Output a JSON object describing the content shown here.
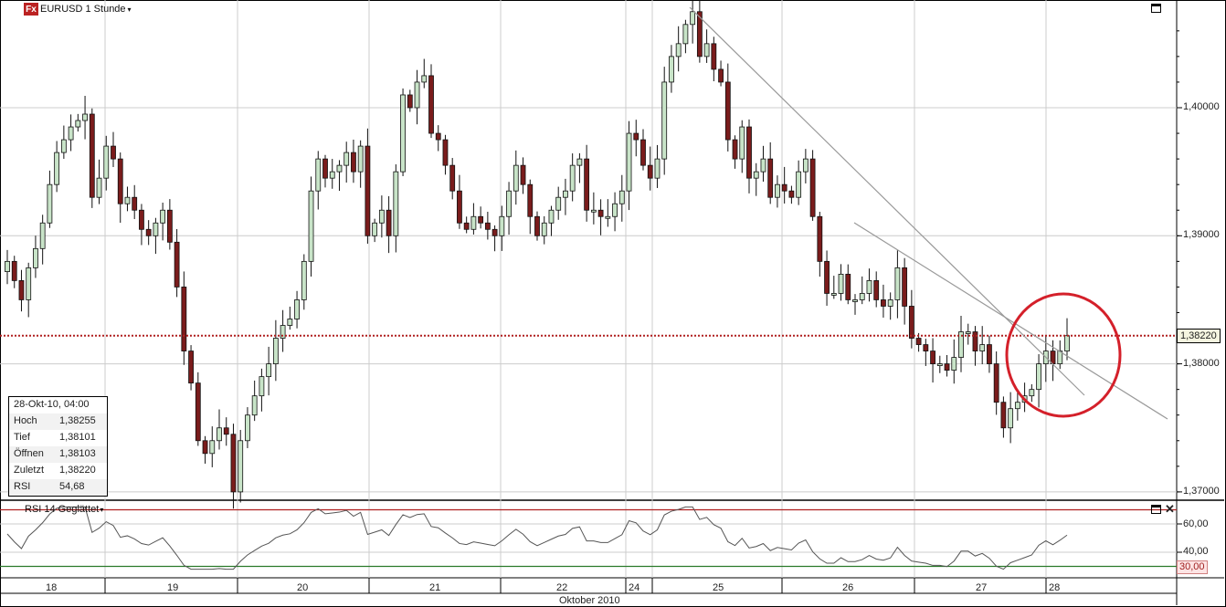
{
  "header": {
    "icon_label": "Fx",
    "title": "EURUSD 1 Stunde",
    "dropdown_caret": "▾"
  },
  "info_panel": {
    "datetime": "28-Okt-10, 04:00",
    "rows": [
      {
        "label": "Hoch",
        "value": "1,38255"
      },
      {
        "label": "Tief",
        "value": "1,38101"
      },
      {
        "label": "Öffnen",
        "value": "1,38103"
      },
      {
        "label": "Zuletzt",
        "value": "1,38220"
      },
      {
        "label": "RSI",
        "value": "54,68"
      }
    ]
  },
  "price_axis": {
    "labels": [
      "1,40000",
      "1,39000",
      "1,38000",
      "1,37000"
    ],
    "current_price": "1,38220"
  },
  "rsi_panel": {
    "title": "RSI 14 Geglättet",
    "labels": [
      "60,00",
      "40,00"
    ],
    "lower_level": "30,00",
    "close_icon": "✕"
  },
  "x_axis": {
    "days": [
      "18",
      "19",
      "20",
      "21",
      "22",
      "24",
      "25",
      "26",
      "27",
      "28"
    ],
    "month": "Oktober 2010"
  },
  "colors": {
    "bull": "#c8e4c8",
    "bear": "#7a1c1c",
    "current_line": "#b02020",
    "rsi_upper": "#b02020",
    "rsi_lower": "#2a7a2a",
    "circle": "#d4202a",
    "trendline": "#999999"
  },
  "chart_data": [
    {
      "type": "candlestick",
      "title": "EURUSD 1 Stunde",
      "xlabel": "Oktober 2010",
      "ylabel": "",
      "ylim": [
        1.3695,
        1.408
      ],
      "y_ticks": [
        1.37,
        1.38,
        1.39,
        1.4
      ],
      "x_ticks": [
        "18",
        "19",
        "20",
        "21",
        "22",
        "24",
        "25",
        "26",
        "27",
        "28"
      ],
      "grid": true,
      "current_price": 1.3822,
      "last_candle": {
        "time": "28-Okt-10, 04:00",
        "open": 1.38103,
        "high": 1.38255,
        "low": 1.38101,
        "close": 1.3822
      },
      "approx_series_close": [
        1.388,
        1.3865,
        1.385,
        1.3875,
        1.389,
        1.391,
        1.394,
        1.3965,
        1.3975,
        1.3985,
        1.399,
        1.3995,
        1.393,
        1.3945,
        1.397,
        1.396,
        1.3925,
        1.393,
        1.392,
        1.3905,
        1.39,
        1.391,
        1.392,
        1.3895,
        1.386,
        1.381,
        1.3785,
        1.374,
        1.373,
        1.374,
        1.375,
        1.3745,
        1.37,
        1.374,
        1.376,
        1.3775,
        1.379,
        1.38,
        1.382,
        1.383,
        1.3835,
        1.385,
        1.388,
        1.3935,
        1.396,
        1.3945,
        1.395,
        1.3955,
        1.3965,
        1.395,
        1.397,
        1.39,
        1.391,
        1.392,
        1.39,
        1.395,
        1.401,
        1.4,
        1.402,
        1.4025,
        1.398,
        1.3975,
        1.3955,
        1.3935,
        1.391,
        1.3905,
        1.3915,
        1.391,
        1.3905,
        1.39,
        1.3915,
        1.3935,
        1.3955,
        1.394,
        1.3915,
        1.39,
        1.391,
        1.392,
        1.393,
        1.3935,
        1.3955,
        1.396,
        1.392,
        1.392,
        1.3915,
        1.3915,
        1.3925,
        1.3935,
        1.398,
        1.3975,
        1.3955,
        1.3945,
        1.396,
        1.402,
        1.404,
        1.405,
        1.4065,
        1.4075,
        1.404,
        1.405,
        1.403,
        1.402,
        1.3975,
        1.396,
        1.3985,
        1.3945,
        1.395,
        1.396,
        1.393,
        1.394,
        1.3935,
        1.393,
        1.395,
        1.396,
        1.3915,
        1.388,
        1.3855,
        1.3855,
        1.387,
        1.385,
        1.385,
        1.3855,
        1.3865,
        1.385,
        1.3845,
        1.385,
        1.3875,
        1.3845,
        1.382,
        1.3815,
        1.381,
        1.38,
        1.38,
        1.3795,
        1.3805,
        1.3825,
        1.3825,
        1.381,
        1.3815,
        1.38,
        1.377,
        1.375,
        1.3765,
        1.377,
        1.3775,
        1.378,
        1.38,
        1.381,
        1.38,
        1.381,
        1.3822
      ],
      "annotations": [
        "Downward trendline from 25 Oct high",
        "Second trendline from 26 Oct",
        "Red circle highlighting breakout near 28 Oct"
      ]
    },
    {
      "type": "line",
      "title": "RSI 14 Geglättet",
      "ylim": [
        25,
        70
      ],
      "y_ticks": [
        40,
        60
      ],
      "levels": {
        "upper": 70,
        "lower": 30
      },
      "current_value": 54.68
    }
  ]
}
